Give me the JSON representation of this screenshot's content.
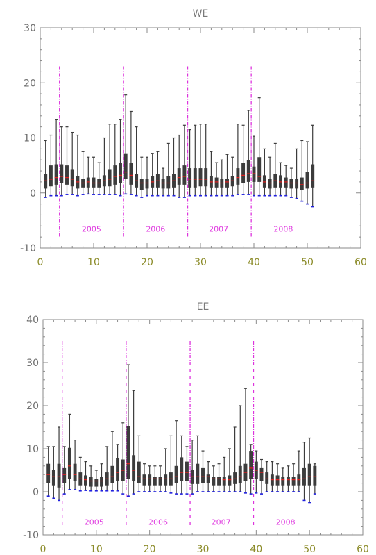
{
  "chart_data": [
    {
      "type": "box",
      "title": "WE",
      "xlim": [
        0,
        60
      ],
      "ylim": [
        -10,
        30
      ],
      "xticks": [
        "0",
        "10",
        "20",
        "30",
        "40",
        "50",
        "60"
      ],
      "yticks": [
        "-10",
        "0",
        "10",
        "20",
        "30"
      ],
      "x": [
        1,
        2,
        3,
        4,
        5,
        6,
        7,
        8,
        9,
        10,
        11,
        12,
        13,
        14,
        15,
        16,
        17,
        18,
        19,
        20,
        21,
        22,
        23,
        24,
        25,
        26,
        27,
        28,
        29,
        30,
        31,
        32,
        33,
        34,
        35,
        36,
        37,
        38,
        39,
        40,
        41,
        42,
        43,
        44,
        45,
        46,
        47,
        48,
        49,
        50,
        51
      ],
      "q1": [
        0.8,
        1.2,
        1.5,
        1.8,
        1.5,
        1.2,
        0.8,
        1.0,
        1.0,
        1.0,
        1.0,
        1.2,
        1.2,
        1.5,
        1.8,
        2.5,
        1.5,
        1.0,
        0.5,
        0.8,
        1.0,
        1.0,
        0.8,
        0.8,
        1.0,
        1.5,
        1.5,
        1.0,
        1.0,
        1.2,
        1.2,
        1.0,
        1.0,
        1.0,
        1.0,
        1.2,
        1.5,
        1.8,
        2.0,
        2.0,
        2.0,
        1.0,
        0.8,
        1.0,
        1.0,
        1.0,
        0.8,
        0.8,
        0.5,
        0.8,
        1.0
      ],
      "median": [
        2.2,
        2.5,
        2.8,
        3.0,
        2.8,
        2.5,
        2.0,
        1.8,
        2.0,
        1.8,
        1.8,
        2.2,
        2.5,
        3.0,
        3.2,
        3.8,
        3.2,
        2.2,
        1.8,
        1.8,
        2.0,
        2.2,
        1.8,
        1.8,
        2.2,
        2.8,
        3.0,
        2.5,
        2.5,
        2.5,
        2.5,
        2.0,
        2.0,
        1.8,
        2.0,
        2.2,
        2.8,
        3.2,
        3.5,
        3.5,
        3.0,
        2.0,
        1.8,
        2.2,
        2.0,
        2.0,
        1.8,
        1.8,
        1.5,
        1.8,
        2.2
      ],
      "q3": [
        3.5,
        5.0,
        5.2,
        5.2,
        5.0,
        4.2,
        3.0,
        2.5,
        2.8,
        2.8,
        2.5,
        3.2,
        4.2,
        5.0,
        5.5,
        7.2,
        5.5,
        3.5,
        2.5,
        2.5,
        3.0,
        3.5,
        2.5,
        3.0,
        3.5,
        4.5,
        5.0,
        4.5,
        4.5,
        4.5,
        4.5,
        3.0,
        2.8,
        2.5,
        2.5,
        3.0,
        4.5,
        5.5,
        6.0,
        4.8,
        6.5,
        3.2,
        2.5,
        3.5,
        3.2,
        2.8,
        2.5,
        2.5,
        2.8,
        3.8,
        5.2
      ],
      "whislo": [
        -0.8,
        -0.5,
        -0.5,
        -0.5,
        -0.3,
        -0.3,
        -0.5,
        -0.3,
        -0.2,
        -0.3,
        -0.3,
        -0.3,
        -0.3,
        -0.3,
        -0.5,
        -0.2,
        -0.3,
        -0.5,
        -0.8,
        -0.5,
        -0.5,
        -0.5,
        -0.5,
        -0.5,
        -0.5,
        -0.8,
        -0.8,
        -0.5,
        -0.5,
        -0.5,
        -0.5,
        -0.5,
        -0.5,
        -0.5,
        -0.5,
        -0.5,
        -0.3,
        -0.3,
        -0.3,
        -0.5,
        -0.5,
        -0.5,
        -0.5,
        -0.5,
        -0.5,
        -0.5,
        -0.8,
        -1.0,
        -1.5,
        -2.0,
        -2.5
      ],
      "whishi": [
        9.5,
        10.5,
        13.3,
        12.0,
        12.0,
        11.0,
        10.5,
        7.5,
        6.5,
        6.5,
        5.5,
        10.0,
        12.5,
        12.5,
        13.3,
        17.8,
        14.8,
        12.0,
        6.5,
        6.5,
        7.2,
        7.5,
        4.5,
        9.0,
        10.0,
        10.5,
        12.3,
        11.5,
        12.3,
        12.5,
        12.5,
        7.5,
        5.5,
        6.0,
        7.0,
        6.5,
        12.5,
        12.3,
        15.0,
        10.3,
        17.3,
        8.0,
        6.5,
        9.0,
        5.5,
        5.0,
        4.5,
        8.0,
        9.5,
        9.3,
        12.3
      ],
      "dividers": [
        3.6,
        15.6,
        27.6,
        39.5
      ],
      "year_labels": [
        "2005",
        "2006",
        "2007",
        "2008"
      ],
      "year_label_x": [
        9.6,
        21.6,
        33.4,
        45.5
      ],
      "year_label_y": -6.5,
      "divider_range": [
        -8,
        23
      ],
      "colors": {
        "box": "#3c3c3c",
        "median": "#e02020",
        "low_cap": "#2020dd",
        "divider": "#dd33dd",
        "frame": "#8a8a8a"
      }
    },
    {
      "type": "box",
      "title": "EE",
      "xlim": [
        0,
        60
      ],
      "ylim": [
        -10,
        40
      ],
      "xticks": [
        "0",
        "10",
        "20",
        "30",
        "40",
        "50",
        "60"
      ],
      "yticks": [
        "-10",
        "0",
        "10",
        "20",
        "30",
        "40"
      ],
      "x": [
        1,
        2,
        3,
        4,
        5,
        6,
        7,
        8,
        9,
        10,
        11,
        12,
        13,
        14,
        15,
        16,
        17,
        18,
        19,
        20,
        21,
        22,
        23,
        24,
        25,
        26,
        27,
        28,
        29,
        30,
        31,
        32,
        33,
        34,
        35,
        36,
        37,
        38,
        39,
        40,
        41,
        42,
        43,
        44,
        45,
        46,
        47,
        48,
        49,
        50,
        51
      ],
      "q1": [
        2.0,
        1.5,
        1.0,
        2.0,
        3.0,
        2.5,
        1.5,
        1.5,
        1.2,
        1.2,
        1.2,
        1.5,
        2.0,
        2.5,
        2.5,
        3.0,
        2.5,
        2.0,
        1.5,
        1.5,
        1.5,
        1.5,
        1.5,
        1.5,
        2.0,
        2.5,
        2.5,
        1.8,
        1.8,
        2.0,
        2.0,
        1.5,
        1.5,
        1.5,
        1.5,
        1.8,
        2.0,
        2.5,
        3.0,
        3.0,
        2.5,
        1.8,
        1.5,
        1.5,
        1.5,
        1.5,
        1.5,
        1.5,
        1.5,
        1.5,
        1.5
      ],
      "median": [
        4.0,
        3.5,
        3.5,
        4.0,
        6.0,
        4.0,
        3.0,
        2.8,
        2.5,
        2.5,
        2.5,
        3.0,
        3.5,
        4.5,
        5.0,
        6.5,
        5.0,
        3.5,
        3.0,
        3.0,
        3.0,
        3.0,
        3.0,
        3.0,
        3.5,
        4.5,
        4.5,
        3.5,
        3.5,
        3.5,
        3.5,
        3.0,
        3.0,
        2.8,
        2.8,
        3.0,
        3.5,
        4.5,
        5.5,
        5.0,
        4.5,
        3.0,
        2.8,
        2.8,
        2.8,
        2.8,
        2.8,
        2.8,
        3.0,
        3.5,
        3.5
      ],
      "q3": [
        6.5,
        5.0,
        6.5,
        5.5,
        10.2,
        6.5,
        4.5,
        3.8,
        3.5,
        3.0,
        3.5,
        4.5,
        6.0,
        7.8,
        7.5,
        15.2,
        8.5,
        7.0,
        4.0,
        4.0,
        3.5,
        3.5,
        4.0,
        4.5,
        6.0,
        8.0,
        7.0,
        5.0,
        6.5,
        5.5,
        4.0,
        3.5,
        3.5,
        3.5,
        3.8,
        4.5,
        6.0,
        6.5,
        9.5,
        7.0,
        5.5,
        4.5,
        4.0,
        3.8,
        3.5,
        3.5,
        3.5,
        4.0,
        5.5,
        6.5,
        6.0
      ],
      "whislo": [
        -1.0,
        -1.5,
        -2.0,
        -0.5,
        0.5,
        0.5,
        0.2,
        0.3,
        0.2,
        0.2,
        0.2,
        0.2,
        0.2,
        0.2,
        -0.5,
        -1.0,
        -0.5,
        0.0,
        0.0,
        0.0,
        0.0,
        0.0,
        0.0,
        -0.3,
        -0.5,
        -0.5,
        -0.5,
        -0.5,
        0.0,
        0.0,
        0.0,
        0.0,
        0.0,
        0.0,
        0.0,
        0.0,
        0.0,
        -0.3,
        -0.5,
        -0.3,
        -0.5,
        0.0,
        0.0,
        0.0,
        0.0,
        0.0,
        0.0,
        0.0,
        -2.0,
        -2.5,
        -0.5
      ],
      "whishi": [
        10.5,
        10.5,
        15.0,
        10.5,
        18.0,
        12.0,
        8.0,
        7.0,
        6.0,
        5.0,
        6.5,
        10.5,
        14.0,
        11.0,
        16.0,
        29.5,
        23.5,
        13.0,
        6.5,
        6.0,
        6.0,
        6.0,
        10.0,
        13.0,
        16.5,
        13.0,
        10.5,
        12.0,
        13.0,
        9.5,
        7.0,
        6.0,
        6.5,
        8.0,
        10.0,
        15.0,
        20.0,
        24.0,
        11.0,
        9.5,
        7.5,
        7.0,
        7.0,
        6.5,
        5.5,
        6.0,
        6.5,
        9.5,
        11.5,
        12.5,
        6.5
      ],
      "dividers": [
        3.6,
        15.6,
        27.6,
        39.5
      ],
      "year_labels": [
        "2005",
        "2006",
        "2007",
        "2008"
      ],
      "year_label_x": [
        9.6,
        21.6,
        33.4,
        45.5
      ],
      "year_label_y": -7.0,
      "divider_range": [
        -8,
        35
      ],
      "colors": {
        "box": "#3c3c3c",
        "median": "#e02020",
        "low_cap": "#2020dd",
        "divider": "#dd33dd",
        "frame": "#8a8a8a"
      }
    }
  ]
}
